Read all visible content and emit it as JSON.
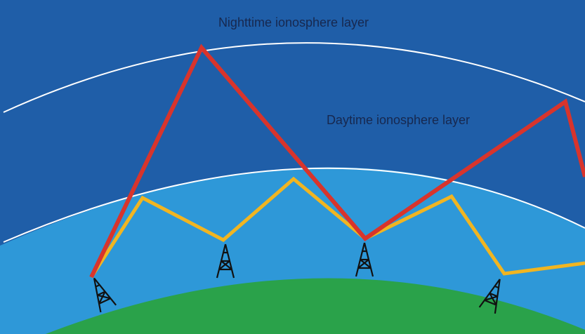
{
  "labels": {
    "nighttime": "Nighttime ionosphere layer",
    "daytime": "Daytime ionosphere layer"
  }
}
